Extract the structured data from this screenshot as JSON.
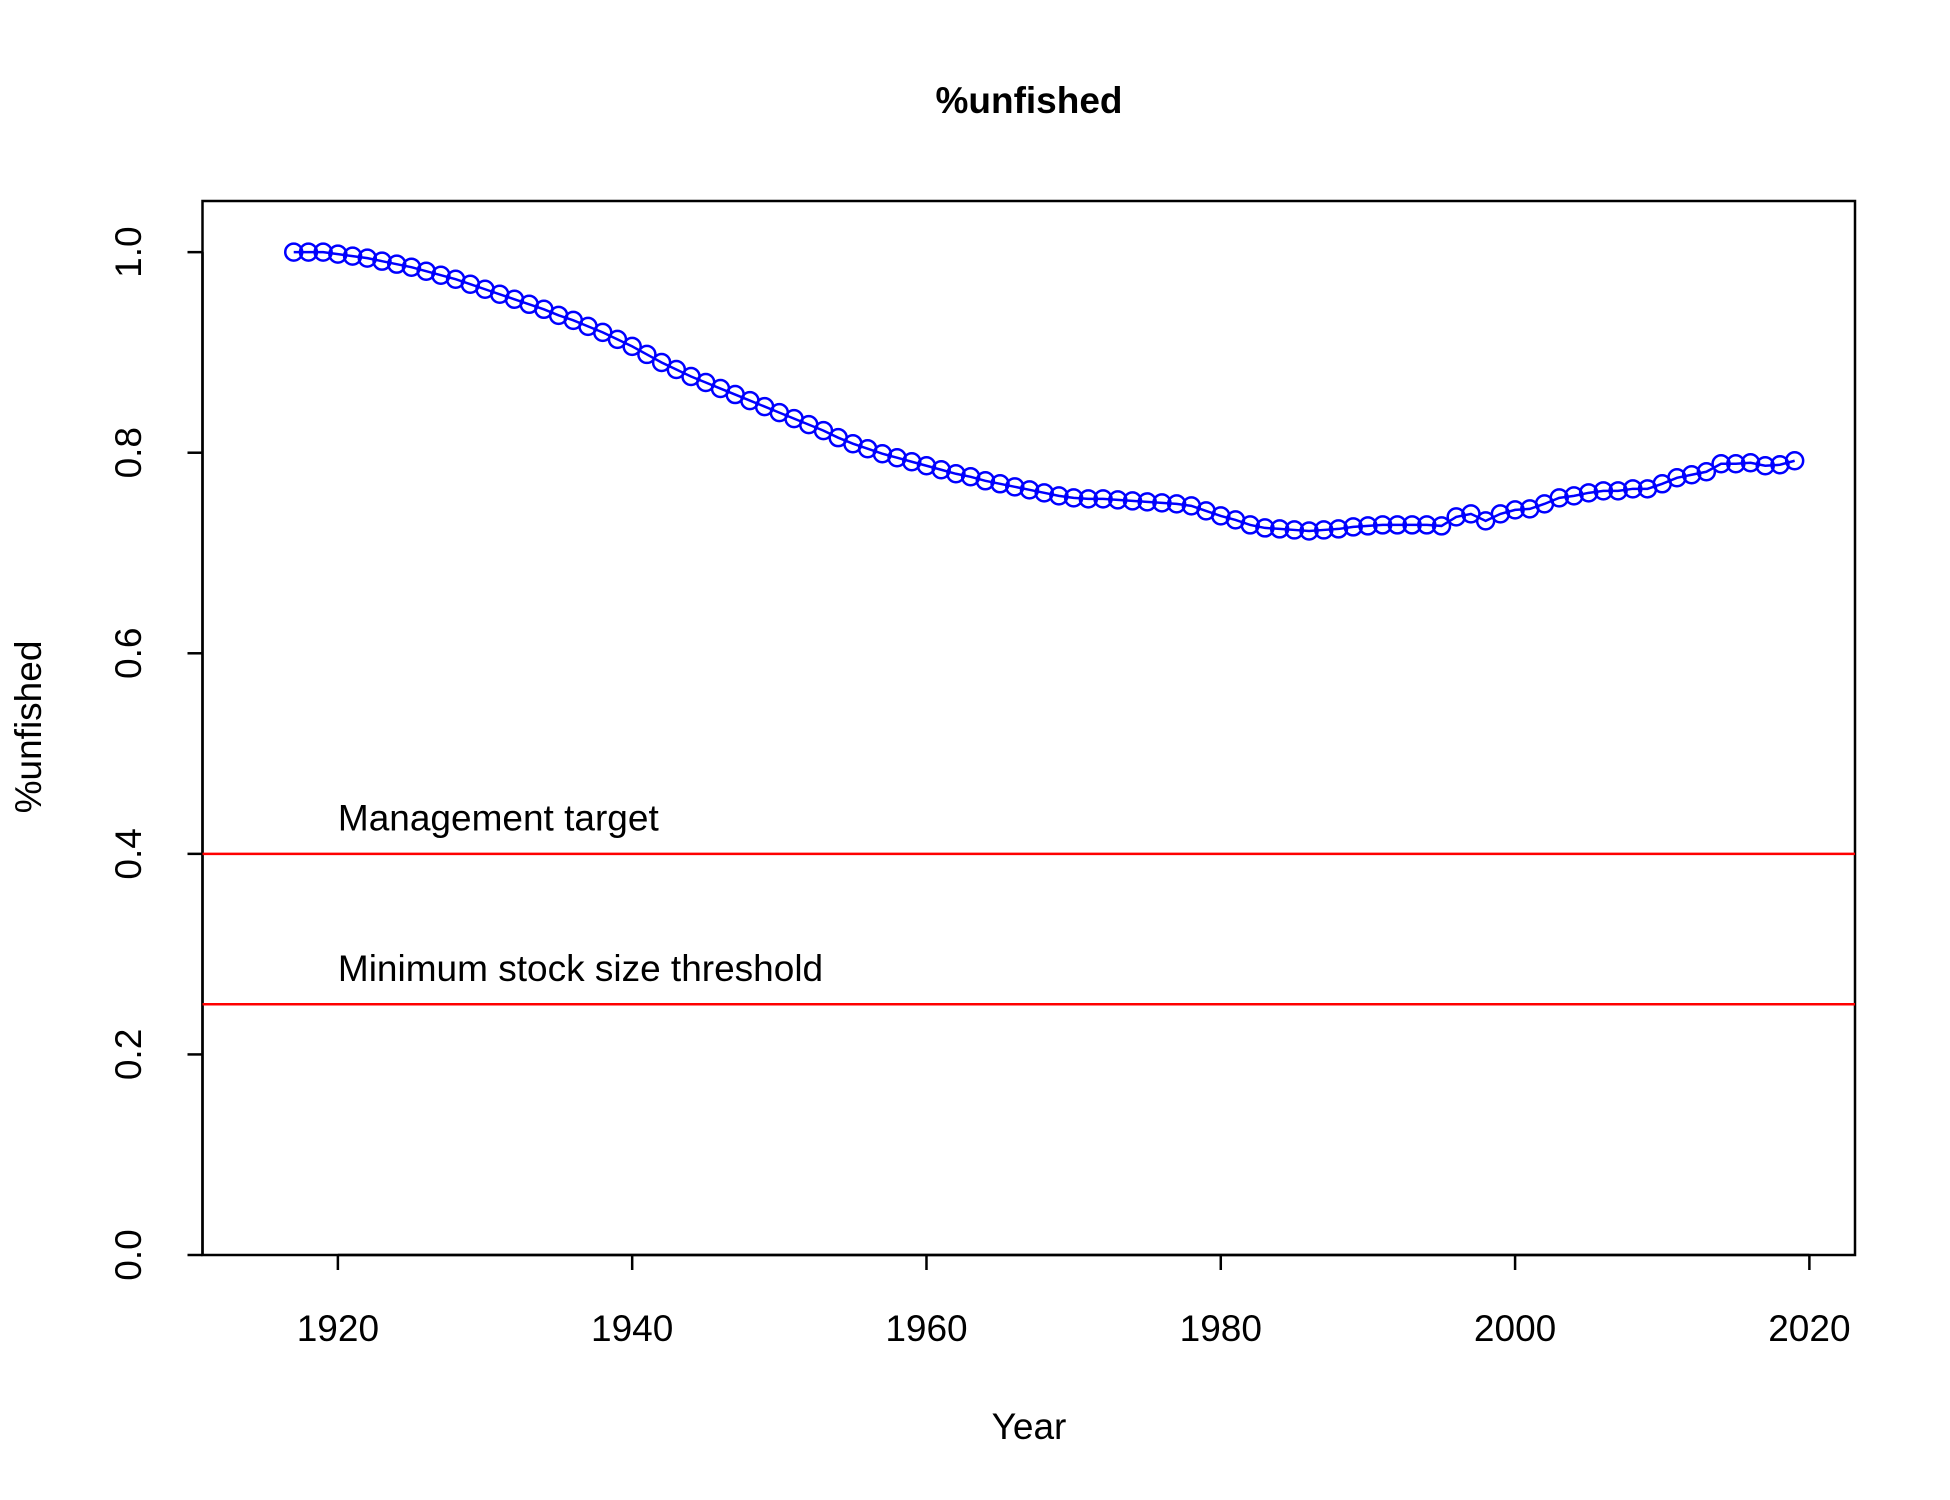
{
  "chart_data": {
    "type": "line",
    "title": "%unfished",
    "x_label": "Year",
    "y_label": "%unfished",
    "x": [
      1917,
      1918,
      1919,
      1920,
      1921,
      1922,
      1923,
      1924,
      1925,
      1926,
      1927,
      1928,
      1929,
      1930,
      1931,
      1932,
      1933,
      1934,
      1935,
      1936,
      1937,
      1938,
      1939,
      1940,
      1941,
      1942,
      1943,
      1944,
      1945,
      1946,
      1947,
      1948,
      1949,
      1950,
      1951,
      1952,
      1953,
      1954,
      1955,
      1956,
      1957,
      1958,
      1959,
      1960,
      1961,
      1962,
      1963,
      1964,
      1965,
      1966,
      1967,
      1968,
      1969,
      1970,
      1971,
      1972,
      1973,
      1974,
      1975,
      1976,
      1977,
      1978,
      1979,
      1980,
      1981,
      1982,
      1983,
      1984,
      1985,
      1986,
      1987,
      1988,
      1989,
      1990,
      1991,
      1992,
      1993,
      1994,
      1995,
      1996,
      1997,
      1998,
      1999,
      2000,
      2001,
      2002,
      2003,
      2004,
      2005,
      2006,
      2007,
      2008,
      2009,
      2010,
      2011,
      2012,
      2013,
      2014,
      2015,
      2016,
      2017,
      2018,
      2019
    ],
    "series": [
      {
        "name": "%unfished",
        "color": "#0000ff",
        "marker": "circle",
        "values": [
          1.0,
          1.0,
          1.0,
          0.998,
          0.996,
          0.994,
          0.991,
          0.988,
          0.985,
          0.981,
          0.977,
          0.973,
          0.968,
          0.963,
          0.958,
          0.953,
          0.948,
          0.943,
          0.937,
          0.932,
          0.926,
          0.92,
          0.913,
          0.906,
          0.898,
          0.89,
          0.883,
          0.876,
          0.87,
          0.864,
          0.858,
          0.852,
          0.846,
          0.84,
          0.834,
          0.828,
          0.822,
          0.815,
          0.809,
          0.804,
          0.799,
          0.795,
          0.791,
          0.787,
          0.783,
          0.779,
          0.776,
          0.772,
          0.769,
          0.766,
          0.763,
          0.76,
          0.757,
          0.755,
          0.754,
          0.754,
          0.753,
          0.752,
          0.751,
          0.75,
          0.749,
          0.747,
          0.742,
          0.737,
          0.733,
          0.728,
          0.725,
          0.724,
          0.723,
          0.722,
          0.723,
          0.724,
          0.726,
          0.727,
          0.728,
          0.728,
          0.728,
          0.728,
          0.727,
          0.736,
          0.739,
          0.732,
          0.739,
          0.743,
          0.744,
          0.749,
          0.755,
          0.757,
          0.76,
          0.762,
          0.762,
          0.764,
          0.764,
          0.769,
          0.775,
          0.778,
          0.781,
          0.789,
          0.789,
          0.79,
          0.787,
          0.788,
          0.792
        ]
      }
    ],
    "hlines": [
      {
        "value": 0.4,
        "label": "Management target",
        "color": "#ff0000"
      },
      {
        "value": 0.25,
        "label": "Minimum stock size threshold",
        "color": "#ff0000"
      }
    ],
    "xlim": [
      1910.8,
      2023.1
    ],
    "xticks": [
      1920,
      1940,
      1960,
      1980,
      2000,
      2020
    ],
    "ylim": [
      0,
      1.051
    ],
    "yticks": [
      {
        "value": 0,
        "label": "0.0"
      },
      0.2,
      0.4,
      0.6,
      0.8,
      {
        "value": 1,
        "label": "1.0"
      }
    ]
  }
}
